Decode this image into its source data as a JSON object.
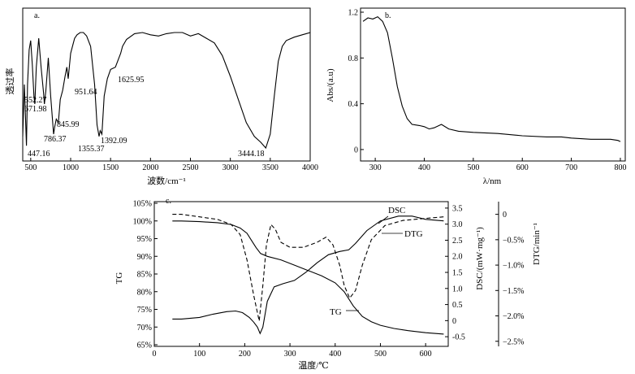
{
  "chart_data": [
    {
      "panel": "a.",
      "type": "line",
      "xlabel": "波数/cm⁻¹",
      "ylabel": "透过率",
      "xlim": [
        400,
        4000
      ],
      "x_ticks": [
        500,
        1000,
        1500,
        2000,
        2500,
        3000,
        3500,
        4000
      ],
      "y_ticks": [],
      "series": [
        {
          "color": "#000000",
          "x": [
            400,
            420,
            447,
            460,
            480,
            500,
            520,
            540,
            552,
            570,
            600,
            630,
            660,
            672,
            690,
            720,
            750,
            786,
            800,
            820,
            846,
            870,
            900,
            930,
            952,
            970,
            1000,
            1030,
            1050,
            1080,
            1120,
            1160,
            1200,
            1250,
            1300,
            1330,
            1356,
            1370,
            1392,
            1420,
            1460,
            1500,
            1560,
            1626,
            1650,
            1700,
            1800,
            1900,
            2000,
            2100,
            2200,
            2300,
            2400,
            2500,
            2600,
            2700,
            2800,
            2900,
            3000,
            3100,
            3200,
            3300,
            3380,
            3444,
            3500,
            3550,
            3600,
            3650,
            3700,
            3800,
            3900,
            4000
          ],
          "y": [
            0.1,
            0.55,
            0.02,
            0.55,
            0.85,
            0.93,
            0.72,
            0.45,
            0.38,
            0.7,
            0.95,
            0.7,
            0.48,
            0.38,
            0.5,
            0.78,
            0.45,
            0.12,
            0.18,
            0.25,
            0.22,
            0.42,
            0.5,
            0.62,
            0.7,
            0.6,
            0.82,
            0.9,
            0.95,
            0.98,
            1.0,
            1.0,
            0.97,
            0.88,
            0.55,
            0.2,
            0.1,
            0.15,
            0.12,
            0.45,
            0.6,
            0.68,
            0.7,
            0.82,
            0.88,
            0.94,
            0.99,
            1.0,
            0.98,
            0.97,
            0.99,
            1.0,
            1.0,
            0.97,
            0.99,
            0.95,
            0.91,
            0.8,
            0.62,
            0.42,
            0.22,
            0.1,
            0.05,
            0.0,
            0.12,
            0.45,
            0.75,
            0.88,
            0.93,
            0.96,
            0.98,
            1.0
          ]
        }
      ],
      "annotations": [
        {
          "text": "552.27",
          "x": 552
        },
        {
          "text": "671.98",
          "x": 672
        },
        {
          "text": "447.16",
          "x": 447
        },
        {
          "text": "786.37",
          "x": 786
        },
        {
          "text": "845.99",
          "x": 846
        },
        {
          "text": "951.64",
          "x": 952
        },
        {
          "text": "1355.37",
          "x": 1355
        },
        {
          "text": "1392.09",
          "x": 1392
        },
        {
          "text": "1625.95",
          "x": 1626
        },
        {
          "text": "3444.18",
          "x": 3444
        }
      ]
    },
    {
      "panel": "b.",
      "type": "line",
      "xlabel": "λ/nm",
      "ylabel": "Abs/(a.u)",
      "xlim": [
        270,
        810
      ],
      "ylim": [
        -0.1,
        1.2
      ],
      "x_ticks": [
        300,
        400,
        500,
        600,
        700,
        800
      ],
      "y_ticks": [
        0,
        0.4,
        0.8,
        1.2
      ],
      "y_tick_labels": [
        "0",
        "0.4",
        "0.8",
        "1.2"
      ],
      "series": [
        {
          "color": "#000000",
          "x": [
            275,
            285,
            295,
            305,
            315,
            325,
            335,
            345,
            355,
            365,
            375,
            390,
            400,
            410,
            420,
            435,
            450,
            470,
            500,
            550,
            600,
            650,
            680,
            700,
            740,
            780,
            795,
            800
          ],
          "y": [
            1.12,
            1.15,
            1.14,
            1.16,
            1.12,
            1.02,
            0.8,
            0.55,
            0.38,
            0.27,
            0.22,
            0.21,
            0.2,
            0.18,
            0.19,
            0.22,
            0.18,
            0.16,
            0.15,
            0.14,
            0.12,
            0.11,
            0.11,
            0.1,
            0.09,
            0.09,
            0.08,
            0.07
          ]
        }
      ]
    },
    {
      "panel": "c.",
      "type": "line",
      "xlabel": "温度/℃",
      "xlim": [
        0,
        650
      ],
      "x_ticks": [
        0,
        100,
        200,
        300,
        400,
        500,
        600
      ],
      "y_left": {
        "label": "TG",
        "range": [
          0.65,
          1.05
        ],
        "ticks": [
          0.65,
          0.7,
          0.75,
          0.8,
          0.85,
          0.9,
          0.95,
          1.0,
          1.05
        ],
        "tick_labels": [
          "65%",
          "70%",
          "75%",
          "80%",
          "85%",
          "90%",
          "95%",
          "100%",
          "105%"
        ]
      },
      "y_right": {
        "label": "DSC/(mW·mg⁻¹)",
        "range": [
          -0.8,
          3.7
        ],
        "ticks": [
          -0.5,
          0,
          0.5,
          1.0,
          1.5,
          2.0,
          2.5,
          3.0,
          3.5
        ],
        "tick_labels": [
          "-0.5",
          "0",
          "0.5",
          "1.0",
          "1.5",
          "2.0",
          "2.5",
          "3.0",
          "3.5"
        ]
      },
      "y_right2": {
        "label": "DTG/min⁻¹",
        "range": [
          -0.026,
          0.0025
        ],
        "ticks": [
          0,
          -0.005,
          -0.01,
          -0.015,
          -0.02,
          -0.025
        ],
        "tick_labels": [
          "0",
          "−0.5%",
          "−1.0%",
          "−1.5%",
          "−2.0%",
          "−2.5%"
        ]
      },
      "series": [
        {
          "name": "TG",
          "axis": "left",
          "style": "solid",
          "x": [
            40,
            60,
            100,
            140,
            170,
            190,
            205,
            215,
            225,
            235,
            250,
            280,
            310,
            340,
            370,
            400,
            420,
            440,
            460,
            480,
            500,
            530,
            560,
            600,
            640
          ],
          "y": [
            1.0,
            1.0,
            0.998,
            0.995,
            0.99,
            0.98,
            0.965,
            0.945,
            0.925,
            0.908,
            0.9,
            0.89,
            0.875,
            0.86,
            0.845,
            0.825,
            0.8,
            0.76,
            0.73,
            0.715,
            0.705,
            0.696,
            0.69,
            0.684,
            0.68
          ]
        },
        {
          "name": "DSC",
          "axis": "right",
          "style": "solid",
          "x": [
            40,
            60,
            100,
            130,
            160,
            180,
            195,
            210,
            220,
            228,
            234,
            240,
            250,
            265,
            285,
            310,
            335,
            360,
            385,
            410,
            430,
            445,
            470,
            500,
            540,
            570,
            600,
            640
          ],
          "y": [
            0.05,
            0.05,
            0.1,
            0.2,
            0.28,
            0.3,
            0.25,
            0.1,
            -0.05,
            -0.2,
            -0.4,
            -0.2,
            0.6,
            1.05,
            1.15,
            1.25,
            1.5,
            1.8,
            2.05,
            2.15,
            2.2,
            2.4,
            2.8,
            3.1,
            3.25,
            3.25,
            3.15,
            3.1
          ]
        },
        {
          "name": "DTG",
          "axis": "right2",
          "style": "dashed",
          "x": [
            40,
            60,
            100,
            140,
            170,
            190,
            205,
            220,
            232,
            240,
            248,
            258,
            268,
            280,
            300,
            330,
            360,
            380,
            395,
            410,
            420,
            432,
            445,
            460,
            480,
            510,
            550,
            600,
            640
          ],
          "y": [
            0.0,
            0.0,
            -0.0005,
            -0.001,
            -0.002,
            -0.004,
            -0.009,
            -0.016,
            -0.021,
            -0.014,
            -0.006,
            -0.002,
            -0.003,
            -0.0055,
            -0.0065,
            -0.0065,
            -0.0055,
            -0.0045,
            -0.006,
            -0.01,
            -0.014,
            -0.0165,
            -0.015,
            -0.01,
            -0.005,
            -0.0022,
            -0.0012,
            -0.0008,
            -0.0005
          ]
        }
      ],
      "labels": [
        "DSC",
        "DTG",
        "TG"
      ]
    }
  ]
}
